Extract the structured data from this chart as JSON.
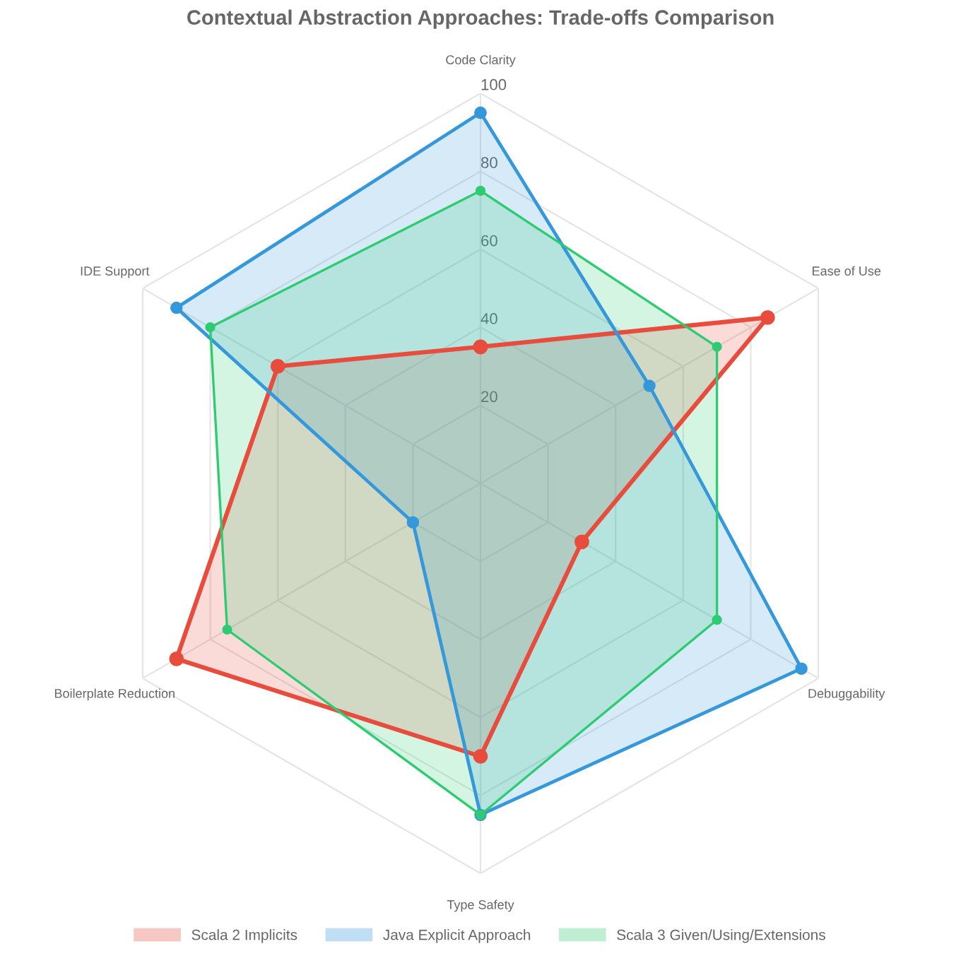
{
  "chart_data": {
    "type": "radar",
    "title": "Contextual Abstraction Approaches: Trade-offs Comparison",
    "categories": [
      "Code Clarity",
      "Ease of Use",
      "Debuggability",
      "Type Safety",
      "Boilerplate Reduction",
      "IDE Support"
    ],
    "series": [
      {
        "name": "Scala 2 Implicits",
        "color": "#e74c3c",
        "values": [
          35,
          85,
          30,
          70,
          90,
          60
        ]
      },
      {
        "name": "Java Explicit Approach",
        "color": "#3498db",
        "values": [
          95,
          50,
          95,
          85,
          20,
          90
        ]
      },
      {
        "name": "Scala 3 Given/Using/Extensions",
        "color": "#2ecc71",
        "values": [
          75,
          70,
          70,
          85,
          75,
          80
        ]
      }
    ],
    "ylim": [
      0,
      100
    ],
    "yticks": [
      20,
      40,
      60,
      80,
      100
    ],
    "grid": true,
    "legend": "bottom",
    "marker": "circle"
  }
}
